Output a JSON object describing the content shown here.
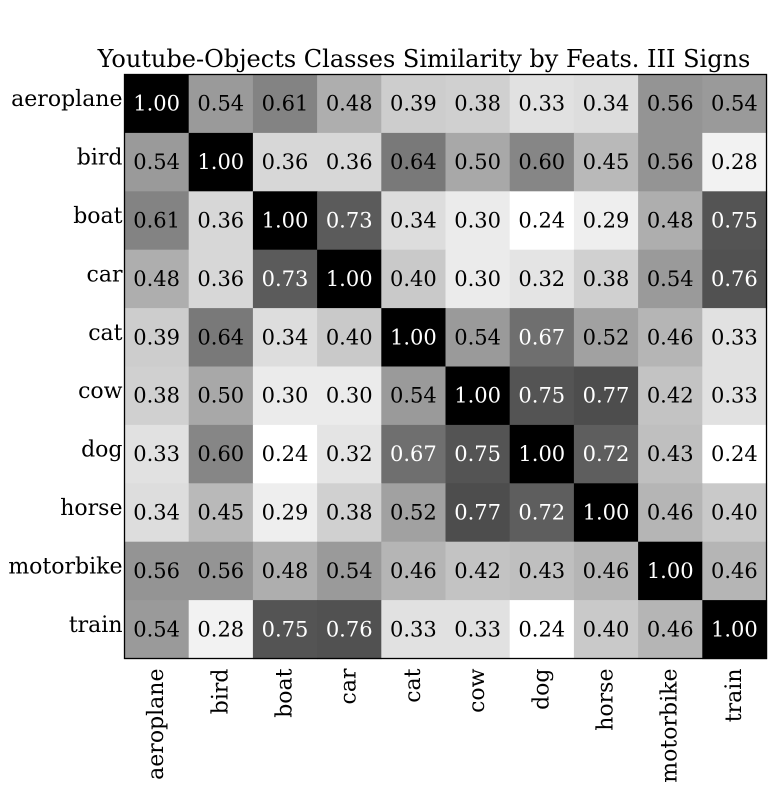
{
  "chart_data": {
    "type": "heatmap",
    "title": "Youtube-Objects Classes Similarity by Feats. III Signs",
    "row_labels": [
      "aeroplane",
      "bird",
      "boat",
      "car",
      "cat",
      "cow",
      "dog",
      "horse",
      "motorbike",
      "train"
    ],
    "col_labels": [
      "aeroplane",
      "bird",
      "boat",
      "car",
      "cat",
      "cow",
      "dog",
      "horse",
      "motorbike",
      "train"
    ],
    "values": [
      [
        1.0,
        0.54,
        0.61,
        0.48,
        0.39,
        0.38,
        0.33,
        0.34,
        0.56,
        0.54
      ],
      [
        0.54,
        1.0,
        0.36,
        0.36,
        0.64,
        0.5,
        0.6,
        0.45,
        0.56,
        0.28
      ],
      [
        0.61,
        0.36,
        1.0,
        0.73,
        0.34,
        0.3,
        0.24,
        0.29,
        0.48,
        0.75
      ],
      [
        0.48,
        0.36,
        0.73,
        1.0,
        0.4,
        0.3,
        0.32,
        0.38,
        0.54,
        0.76
      ],
      [
        0.39,
        0.64,
        0.34,
        0.4,
        1.0,
        0.54,
        0.67,
        0.52,
        0.46,
        0.33
      ],
      [
        0.38,
        0.5,
        0.3,
        0.3,
        0.54,
        1.0,
        0.75,
        0.77,
        0.42,
        0.33
      ],
      [
        0.33,
        0.6,
        0.24,
        0.32,
        0.67,
        0.75,
        1.0,
        0.72,
        0.43,
        0.24
      ],
      [
        0.34,
        0.45,
        0.29,
        0.38,
        0.52,
        0.77,
        0.72,
        1.0,
        0.46,
        0.4
      ],
      [
        0.56,
        0.56,
        0.48,
        0.54,
        0.46,
        0.42,
        0.43,
        0.46,
        1.0,
        0.46
      ],
      [
        0.54,
        0.28,
        0.75,
        0.76,
        0.33,
        0.33,
        0.24,
        0.4,
        0.46,
        1.0
      ]
    ],
    "colormap": "gray_r",
    "value_range": [
      0.24,
      1.0
    ],
    "colors": {
      "low": "#ffffff",
      "high": "#000000",
      "frame": "#000000"
    }
  }
}
